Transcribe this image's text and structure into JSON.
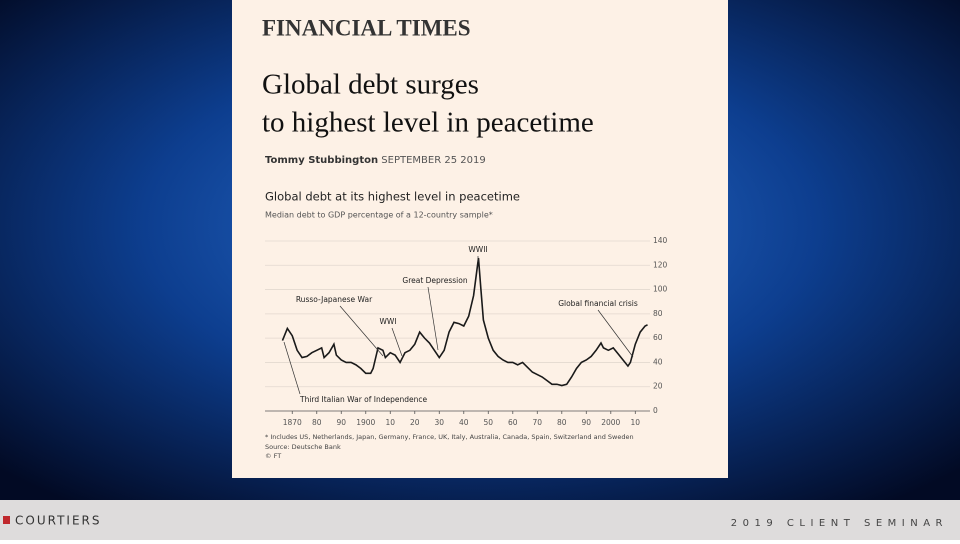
{
  "header": {
    "brand": "FINANCIAL TIMES",
    "headline": [
      "Global debt surges",
      "to highest level in peacetime"
    ],
    "author": "Tommy Stubbington",
    "date": "SEPTEMBER 25 2019"
  },
  "chart_data": {
    "type": "line",
    "title": "Global debt at its highest level in peacetime",
    "subtitle": "Median debt to GDP percentage of a 12-country sample*",
    "x": [
      1866,
      1868,
      1870,
      1872,
      1874,
      1876,
      1878,
      1880,
      1882,
      1883,
      1885,
      1887,
      1888,
      1890,
      1892,
      1894,
      1896,
      1898,
      1900,
      1902,
      1903,
      1905,
      1907,
      1908,
      1910,
      1912,
      1914,
      1916,
      1918,
      1920,
      1922,
      1924,
      1926,
      1928,
      1930,
      1932,
      1934,
      1936,
      1938,
      1940,
      1942,
      1944,
      1946,
      1947,
      1948,
      1950,
      1952,
      1954,
      1956,
      1958,
      1960,
      1962,
      1964,
      1966,
      1968,
      1970,
      1972,
      1974,
      1976,
      1978,
      1980,
      1982,
      1984,
      1986,
      1988,
      1990,
      1992,
      1994,
      1996,
      1997,
      1999,
      2001,
      2003,
      2005,
      2007,
      2008,
      2010,
      2012,
      2014,
      2015
    ],
    "series": [
      {
        "name": "Median debt to GDP",
        "color": "#1a1a1a",
        "values": [
          58,
          68,
          62,
          50,
          44,
          45,
          48,
          50,
          52,
          44,
          48,
          55,
          46,
          42,
          40,
          40,
          38,
          35,
          31,
          31,
          35,
          52,
          50,
          44,
          48,
          46,
          40,
          48,
          50,
          55,
          65,
          60,
          56,
          50,
          44,
          50,
          65,
          73,
          72,
          70,
          78,
          95,
          126,
          100,
          75,
          60,
          50,
          45,
          42,
          40,
          40,
          38,
          40,
          36,
          32,
          30,
          28,
          25,
          22,
          22,
          21,
          22,
          28,
          35,
          40,
          42,
          45,
          50,
          56,
          52,
          50,
          52,
          47,
          42,
          37,
          40,
          55,
          65,
          70,
          71
        ]
      }
    ],
    "xlim": [
      1865,
      2016
    ],
    "xticks": [
      1870,
      {
        "value": 1880,
        "label": "80"
      },
      {
        "value": 1890,
        "label": "90"
      },
      1900,
      {
        "value": 1910,
        "label": "10"
      },
      {
        "value": 1920,
        "label": "20"
      },
      {
        "value": 1930,
        "label": "30"
      },
      {
        "value": 1940,
        "label": "40"
      },
      {
        "value": 1950,
        "label": "50"
      },
      {
        "value": 1960,
        "label": "60"
      },
      {
        "value": 1970,
        "label": "70"
      },
      {
        "value": 1980,
        "label": "80"
      },
      {
        "value": 1990,
        "label": "90"
      },
      2000,
      {
        "value": 2010,
        "label": "10"
      }
    ],
    "ylim": [
      0,
      140
    ],
    "yticks": [
      0,
      20,
      40,
      60,
      80,
      100,
      120,
      140
    ],
    "grid": true,
    "annotations": [
      "WWII",
      "Great Depression",
      "Russo-Japanese War",
      "WWI",
      "Global financial crisis",
      "Third Italian War of Independence"
    ],
    "footnote": "* Includes US, Netherlands, Japan, Germany, France, UK, Italy, Australia, Canada, Spain, Switzerland and Sweden",
    "source": "Source: Deutsche Bank",
    "credit": "© FT"
  },
  "footer": {
    "company": "COURTIERS",
    "event": "2019 CLIENT SEMINAR"
  }
}
